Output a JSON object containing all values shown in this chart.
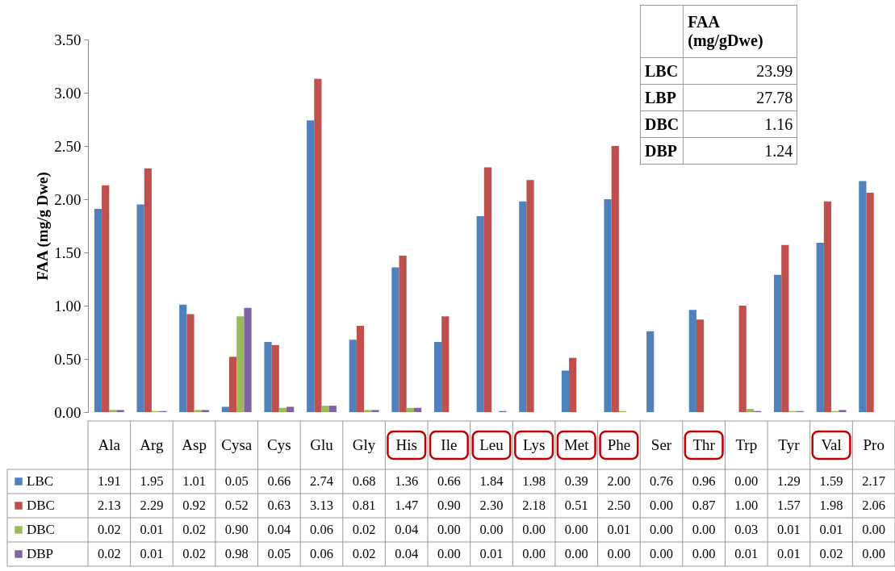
{
  "chart_data": {
    "type": "bar",
    "ylabel": "FAA (mg/g Dwe)",
    "categories": [
      "Ala",
      "Arg",
      "Asp",
      "Cysa",
      "Cys",
      "Glu",
      "Gly",
      "His",
      "Ile",
      "Leu",
      "Lys",
      "Met",
      "Phe",
      "Ser",
      "Thr",
      "Trp",
      "Tyr",
      "Val",
      "Pro"
    ],
    "series": [
      {
        "name": "LBC",
        "color": "#4f81bd",
        "values": [
          1.91,
          1.95,
          1.01,
          0.05,
          0.66,
          2.74,
          0.68,
          1.36,
          0.66,
          1.84,
          1.98,
          0.39,
          2.0,
          0.76,
          0.96,
          0.0,
          1.29,
          1.59,
          2.17
        ],
        "value_labels": [
          "1.91",
          "1.95",
          "1.01",
          "0.05",
          "0.66",
          "2.74",
          "0.68",
          "1.36",
          "0.66",
          "1.84",
          "1.98",
          "0.39",
          "2.00",
          "0.76",
          "0.96",
          "0.00",
          "1.29",
          "1.59",
          "2.17"
        ]
      },
      {
        "name": "DBC",
        "color": "#c0504d",
        "values": [
          2.13,
          2.29,
          0.92,
          0.52,
          0.63,
          3.13,
          0.81,
          1.47,
          0.9,
          2.3,
          2.18,
          0.51,
          2.5,
          0.0,
          0.87,
          1.0,
          1.57,
          1.98,
          2.06
        ],
        "value_labels": [
          "2.13",
          "2.29",
          "0.92",
          "0.52",
          "0.63",
          "3.13",
          "0.81",
          "1.47",
          "0.90",
          "2.30",
          "2.18",
          "0.51",
          "2.50",
          "0.00",
          "0.87",
          "1.00",
          "1.57",
          "1.98",
          "2.06"
        ]
      },
      {
        "name": "DBC",
        "color": "#9bbb59",
        "values": [
          0.02,
          0.01,
          0.02,
          0.9,
          0.04,
          0.06,
          0.02,
          0.04,
          0.0,
          0.0,
          0.0,
          0.0,
          0.01,
          0.0,
          0.0,
          0.03,
          0.01,
          0.01,
          0.0
        ],
        "value_labels": [
          "0.02",
          "0.01",
          "0.02",
          "0.90",
          "0.04",
          "0.06",
          "0.02",
          "0.04",
          "0.00",
          "0.00",
          "0.00",
          "0.00",
          "0.01",
          "0.00",
          "0.00",
          "0.03",
          "0.01",
          "0.01",
          "0.00"
        ]
      },
      {
        "name": "DBP",
        "color": "#8064a2",
        "values": [
          0.02,
          0.01,
          0.02,
          0.98,
          0.05,
          0.06,
          0.02,
          0.04,
          0.0,
          0.01,
          0.0,
          0.0,
          0.0,
          0.0,
          0.0,
          0.01,
          0.01,
          0.02,
          0.0
        ],
        "value_labels": [
          "0.02",
          "0.01",
          "0.02",
          "0.98",
          "0.05",
          "0.06",
          "0.02",
          "0.04",
          "0.00",
          "0.01",
          "0.00",
          "0.00",
          "0.00",
          "0.00",
          "0.00",
          "0.01",
          "0.01",
          "0.02",
          "0.00"
        ]
      }
    ],
    "ylim": [
      0,
      3.5
    ],
    "yticks": [
      {
        "value": 0,
        "label": "0.00"
      },
      {
        "value": 0.5,
        "label": "0.50"
      },
      {
        "value": 1,
        "label": "1.00"
      },
      {
        "value": 1.5,
        "label": "1.50"
      },
      {
        "value": 2,
        "label": "2.00"
      },
      {
        "value": 2.5,
        "label": "2.50"
      },
      {
        "value": 3,
        "label": "3.00"
      },
      {
        "value": 3.5,
        "label": "3.50"
      }
    ],
    "grid": false,
    "legend": "bottom",
    "annotations": [
      "FAA (mg/gDwe)",
      "LBC",
      "23.99",
      "LBP",
      "27.78",
      "DBC",
      "1.16",
      "DBP",
      "1.24"
    ]
  }
}
